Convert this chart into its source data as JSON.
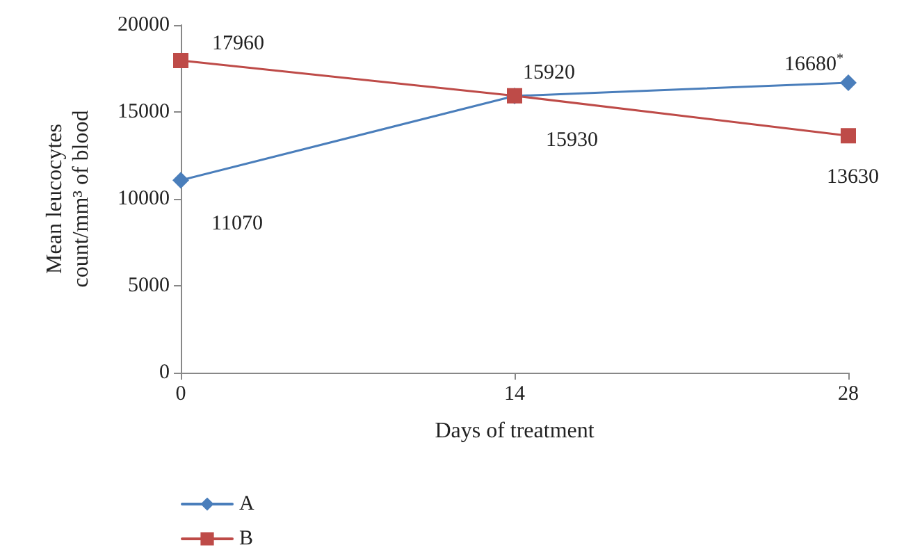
{
  "chart_data": {
    "type": "line",
    "xlabel": "Days of treatment",
    "ylabel": "Mean leucocytes count/mm³ of blood",
    "x": [
      0,
      14,
      28
    ],
    "xlim": [
      0,
      28
    ],
    "xticks": [
      0,
      14,
      28
    ],
    "ylim": [
      0,
      20000
    ],
    "yticks": [
      0,
      5000,
      10000,
      15000,
      20000
    ],
    "series": [
      {
        "name": "A",
        "color": "#4a7ebb",
        "marker": "diamond",
        "values": [
          11070,
          15920,
          16680
        ],
        "value_labels": [
          "11070",
          "15920",
          "16680$^{*}$"
        ]
      },
      {
        "name": "B",
        "color": "#be4b48",
        "marker": "square",
        "values": [
          17960,
          15930,
          13630
        ],
        "value_labels": [
          "17960",
          "15930",
          "13630"
        ]
      }
    ],
    "grid": false,
    "legend": "bottom left",
    "line_style": "solid"
  }
}
